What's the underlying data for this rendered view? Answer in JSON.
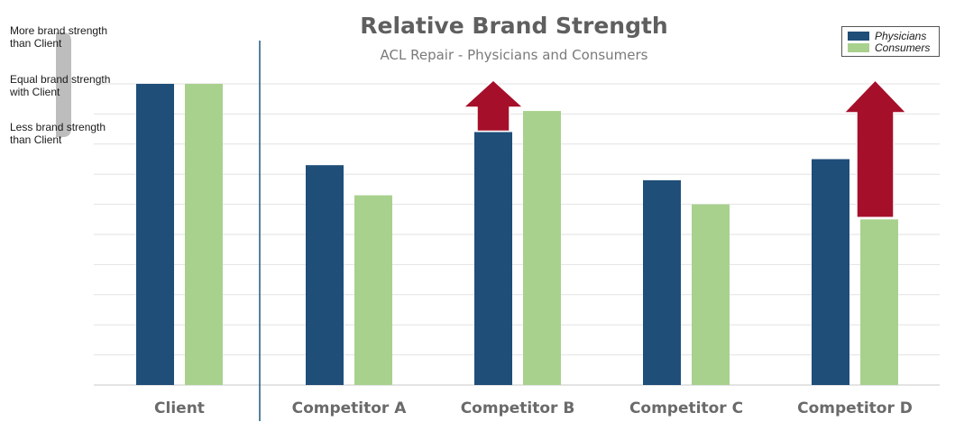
{
  "chart_data": {
    "type": "bar",
    "title": "Relative Brand Strength",
    "subtitle": "ACL Repair - Physicians and Consumers",
    "categories": [
      "Client",
      "Competitor A",
      "Competitor B",
      "Competitor C",
      "Competitor D"
    ],
    "series": [
      {
        "name": "Physicians",
        "color": "#1f4e79",
        "values": [
          100,
          73,
          84,
          68,
          75
        ]
      },
      {
        "name": "Consumers",
        "color": "#a9d18e",
        "values": [
          100,
          63,
          91,
          60,
          55
        ]
      }
    ],
    "ylim": [
      0,
      110
    ],
    "grid": true,
    "legend": "top-right",
    "y_annotations": {
      "more": "More brand strength than Client",
      "equal": "Equal brand strength with Client",
      "less": "Less brand strength than Client"
    },
    "annotations": [
      {
        "type": "up-arrow",
        "category": "Competitor B",
        "from": 84,
        "to": 100,
        "color": "#a50f2a"
      },
      {
        "type": "up-arrow",
        "category": "Competitor D",
        "from": 55,
        "to": 100,
        "color": "#a50f2a"
      }
    ]
  }
}
